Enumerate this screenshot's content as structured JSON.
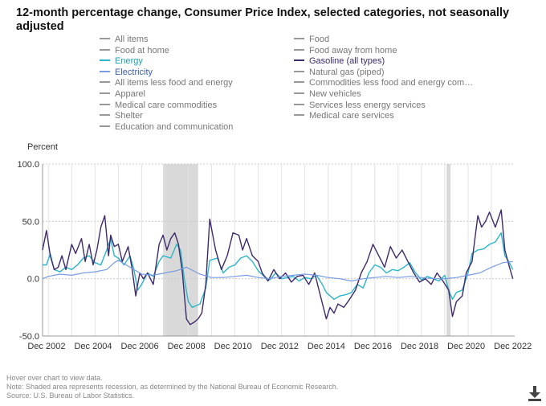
{
  "title": "12-month percentage change, Consumer Price Index, selected categories, not seasonally adjusted",
  "legend": [
    {
      "label": "All items",
      "color": "#999999",
      "active": false
    },
    {
      "label": "Food",
      "color": "#999999",
      "active": false
    },
    {
      "label": "Food at home",
      "color": "#999999",
      "active": false
    },
    {
      "label": "Food away from home",
      "color": "#999999",
      "active": false
    },
    {
      "label": "Energy",
      "color": "#2ab5c8",
      "active": true
    },
    {
      "label": "Gasoline (all types)",
      "color": "#3f2a6b",
      "active": true
    },
    {
      "label": "Electricity",
      "color": "#7a9be0",
      "active": true
    },
    {
      "label": "Natural gas (piped)",
      "color": "#999999",
      "active": false
    },
    {
      "label": "All items less food and energy",
      "color": "#999999",
      "active": false
    },
    {
      "label": "Commodities less food and energy com…",
      "color": "#999999",
      "active": false
    },
    {
      "label": "Apparel",
      "color": "#999999",
      "active": false
    },
    {
      "label": "New vehicles",
      "color": "#999999",
      "active": false
    },
    {
      "label": "Medical care commodities",
      "color": "#999999",
      "active": false
    },
    {
      "label": "Services less energy services",
      "color": "#999999",
      "active": false
    },
    {
      "label": "Shelter",
      "color": "#999999",
      "active": false
    },
    {
      "label": "Medical care services",
      "color": "#999999",
      "active": false
    },
    {
      "label": "Education and communication",
      "color": "#999999",
      "active": false
    }
  ],
  "notes": {
    "hover": "Hover over chart to view data.",
    "note": "Note: Shaded area represents recession, as determined by the National Bureau of Economic Research.",
    "source": "Source: U.S. Bureau of Labor Statistics."
  },
  "download_icon": "download-icon",
  "chart_data": {
    "type": "line",
    "ylabel": "Percent",
    "ylim": [
      -50,
      100
    ],
    "yticks": [
      -50,
      0,
      50,
      100
    ],
    "ytick_labels": [
      "-50.0",
      "0.0",
      "50.0",
      "100.0"
    ],
    "xlim": [
      2002.75,
      2023.0
    ],
    "xticks": [
      2002.92,
      2004.92,
      2006.92,
      2008.92,
      2010.92,
      2012.92,
      2014.92,
      2016.92,
      2018.92,
      2020.92,
      2022.92
    ],
    "xtick_labels": [
      "Dec 2002",
      "Dec 2004",
      "Dec 2006",
      "Dec 2008",
      "Dec 2010",
      "Dec 2012",
      "Dec 2014",
      "Dec 2016",
      "Dec 2018",
      "Dec 2020",
      "Dec 2022"
    ],
    "grid": "vertical",
    "recessions": [
      [
        2007.92,
        2009.42
      ],
      [
        2020.08,
        2020.25
      ]
    ],
    "series": [
      {
        "name": "Energy",
        "color": "#2ab5c8",
        "width": 1.4,
        "x": [
          2002.75,
          2002.92,
          2003.08,
          2003.25,
          2003.5,
          2003.75,
          2004.0,
          2004.25,
          2004.5,
          2004.75,
          2005.0,
          2005.25,
          2005.5,
          2005.67,
          2005.83,
          2006.0,
          2006.25,
          2006.5,
          2006.67,
          2006.83,
          2007.0,
          2007.25,
          2007.5,
          2007.75,
          2007.92,
          2008.25,
          2008.5,
          2008.67,
          2008.83,
          2009.0,
          2009.17,
          2009.5,
          2009.75,
          2009.92,
          2010.25,
          2010.5,
          2010.75,
          2011.0,
          2011.25,
          2011.5,
          2011.75,
          2012.0,
          2012.25,
          2012.5,
          2012.75,
          2013.0,
          2013.25,
          2013.5,
          2013.75,
          2014.0,
          2014.25,
          2014.5,
          2014.75,
          2014.92,
          2015.25,
          2015.5,
          2015.75,
          2016.0,
          2016.25,
          2016.5,
          2016.75,
          2017.0,
          2017.25,
          2017.5,
          2017.75,
          2018.0,
          2018.25,
          2018.5,
          2018.75,
          2019.0,
          2019.25,
          2019.5,
          2019.75,
          2020.0,
          2020.17,
          2020.33,
          2020.5,
          2020.75,
          2021.0,
          2021.17,
          2021.42,
          2021.67,
          2021.92,
          2022.17,
          2022.42,
          2022.58,
          2022.75,
          2022.92
        ],
        "y": [
          12,
          12,
          22,
          8,
          6,
          10,
          8,
          12,
          18,
          20,
          14,
          12,
          25,
          35,
          20,
          18,
          12,
          20,
          8,
          -10,
          -5,
          5,
          2,
          15,
          20,
          18,
          30,
          25,
          0,
          -20,
          -25,
          -22,
          -8,
          16,
          18,
          5,
          10,
          12,
          18,
          20,
          15,
          7,
          2,
          -1,
          5,
          0,
          1,
          2,
          -2,
          1,
          0,
          3,
          -5,
          -12,
          -18,
          -15,
          -14,
          -12,
          -5,
          -8,
          5,
          12,
          10,
          5,
          8,
          7,
          10,
          14,
          5,
          -1,
          2,
          0,
          -2,
          3,
          -10,
          -18,
          -12,
          -10,
          5,
          22,
          25,
          26,
          30,
          32,
          40,
          20,
          15,
          8
        ]
      },
      {
        "name": "Gasoline (all types)",
        "color": "#3f2a6b",
        "width": 1.4,
        "x": [
          2002.75,
          2002.92,
          2003.08,
          2003.25,
          2003.42,
          2003.58,
          2003.75,
          2004.0,
          2004.17,
          2004.42,
          2004.58,
          2004.75,
          2004.92,
          2005.08,
          2005.25,
          2005.42,
          2005.58,
          2005.67,
          2005.83,
          2006.0,
          2006.17,
          2006.42,
          2006.58,
          2006.75,
          2006.83,
          2006.92,
          2007.08,
          2007.25,
          2007.5,
          2007.75,
          2007.92,
          2008.08,
          2008.25,
          2008.42,
          2008.58,
          2008.75,
          2008.92,
          2009.08,
          2009.25,
          2009.42,
          2009.58,
          2009.75,
          2009.92,
          2010.17,
          2010.42,
          2010.67,
          2010.92,
          2011.17,
          2011.33,
          2011.5,
          2011.75,
          2012.0,
          2012.17,
          2012.42,
          2012.67,
          2012.92,
          2013.17,
          2013.42,
          2013.67,
          2013.92,
          2014.17,
          2014.42,
          2014.67,
          2014.92,
          2015.08,
          2015.25,
          2015.42,
          2015.67,
          2015.92,
          2016.17,
          2016.42,
          2016.67,
          2016.92,
          2017.17,
          2017.42,
          2017.67,
          2017.92,
          2018.17,
          2018.42,
          2018.67,
          2018.92,
          2019.17,
          2019.42,
          2019.67,
          2019.92,
          2020.17,
          2020.33,
          2020.5,
          2020.75,
          2020.92,
          2021.17,
          2021.42,
          2021.58,
          2021.75,
          2021.92,
          2022.17,
          2022.42,
          2022.58,
          2022.75,
          2022.92
        ],
        "y": [
          25,
          42,
          20,
          8,
          10,
          20,
          8,
          30,
          22,
          35,
          15,
          30,
          12,
          25,
          45,
          55,
          20,
          38,
          28,
          30,
          15,
          28,
          10,
          -15,
          -5,
          5,
          0,
          5,
          -5,
          30,
          38,
          25,
          35,
          40,
          30,
          5,
          -35,
          -40,
          -38,
          -35,
          -30,
          -5,
          52,
          25,
          8,
          20,
          40,
          38,
          25,
          35,
          20,
          15,
          5,
          -2,
          8,
          0,
          5,
          -3,
          2,
          3,
          -5,
          5,
          -15,
          -35,
          -25,
          -30,
          -22,
          -25,
          -18,
          -10,
          5,
          15,
          30,
          20,
          10,
          28,
          18,
          25,
          15,
          5,
          -3,
          0,
          -5,
          5,
          -2,
          -10,
          -33,
          -20,
          -15,
          5,
          15,
          55,
          45,
          50,
          58,
          45,
          60,
          25,
          12,
          0
        ]
      },
      {
        "name": "Electricity",
        "color": "#7a9be0",
        "width": 1.2,
        "x": [
          2002.75,
          2003.0,
          2003.5,
          2004.0,
          2004.5,
          2005.0,
          2005.5,
          2005.83,
          2006.0,
          2006.5,
          2007.0,
          2007.5,
          2008.0,
          2008.5,
          2008.92,
          2009.5,
          2010.0,
          2010.5,
          2011.0,
          2011.5,
          2012.0,
          2012.5,
          2013.0,
          2013.5,
          2014.0,
          2014.5,
          2015.0,
          2015.5,
          2016.0,
          2016.5,
          2017.0,
          2017.5,
          2018.0,
          2018.5,
          2019.0,
          2019.5,
          2020.0,
          2020.5,
          2021.0,
          2021.5,
          2022.0,
          2022.5,
          2022.92
        ],
        "y": [
          0,
          2,
          4,
          3,
          5,
          6,
          8,
          14,
          16,
          10,
          4,
          3,
          5,
          7,
          10,
          4,
          1,
          1,
          2,
          3,
          1,
          0,
          2,
          3,
          4,
          3,
          1,
          0,
          -2,
          0,
          1,
          2,
          1,
          2,
          1,
          0,
          0,
          1,
          3,
          5,
          10,
          14,
          15
        ]
      }
    ]
  }
}
